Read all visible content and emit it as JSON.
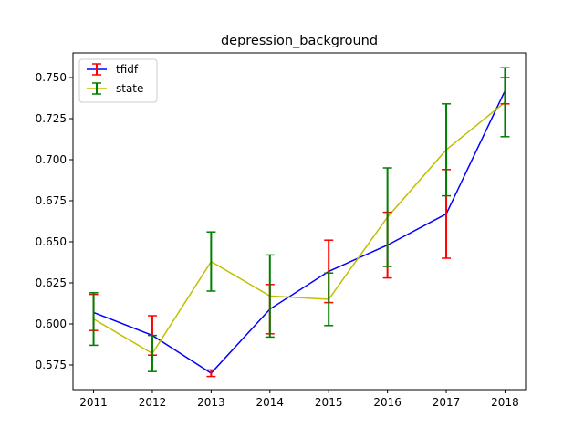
{
  "chart_data": {
    "type": "line",
    "title": "depression_background",
    "xlabel": "",
    "ylabel": "",
    "x": [
      2011,
      2012,
      2013,
      2014,
      2015,
      2016,
      2017,
      2018
    ],
    "xlim": [
      2010.65,
      2018.35
    ],
    "ylim": [
      0.56,
      0.765
    ],
    "xticks": [
      "2011",
      "2012",
      "2013",
      "2014",
      "2015",
      "2016",
      "2017",
      "2018"
    ],
    "yticks": [
      0.575,
      0.6,
      0.625,
      0.65,
      0.675,
      0.7,
      0.725,
      0.75
    ],
    "ytick_labels": [
      "0.575",
      "0.600",
      "0.625",
      "0.650",
      "0.675",
      "0.700",
      "0.725",
      "0.750"
    ],
    "grid": false,
    "legend_position": "top-left",
    "series": [
      {
        "name": "tfidf",
        "line_color": "#0000ff",
        "error_color": "#ff0000",
        "values": [
          0.607,
          0.593,
          0.57,
          0.609,
          0.632,
          0.648,
          0.667,
          0.742
        ],
        "errors": [
          0.011,
          0.012,
          0.002,
          0.015,
          0.019,
          0.02,
          0.027,
          0.008
        ]
      },
      {
        "name": "state",
        "line_color": "#bfbf00",
        "error_color": "#008000",
        "values": [
          0.603,
          0.582,
          0.638,
          0.617,
          0.615,
          0.665,
          0.706,
          0.735
        ],
        "errors": [
          0.016,
          0.011,
          0.018,
          0.025,
          0.016,
          0.03,
          0.028,
          0.021
        ]
      }
    ]
  }
}
